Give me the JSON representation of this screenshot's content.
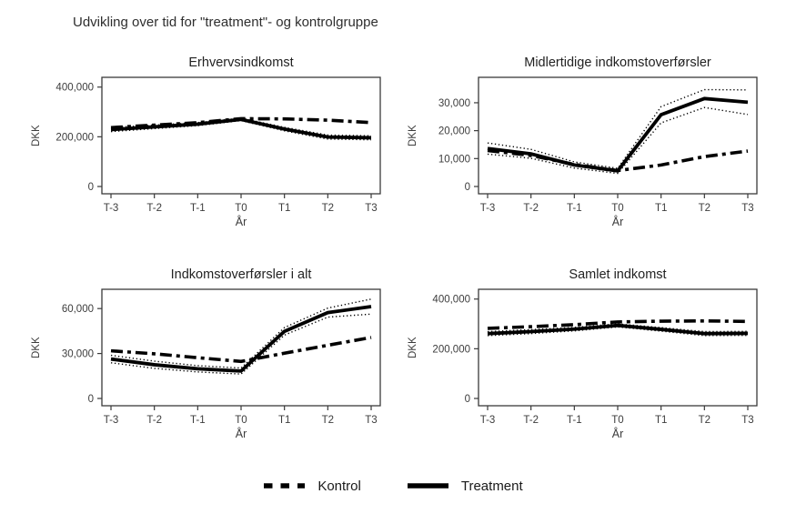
{
  "figure": {
    "title": "Udvikling over tid for \"treatment\"- og kontrolgruppe",
    "legend": [
      {
        "label": "Kontrol",
        "style": "dashed"
      },
      {
        "label": "Treatment",
        "style": "solid"
      }
    ],
    "colors": {
      "line": "#000000",
      "axis": "#3a3a3a",
      "text": "#3c3c3c"
    }
  },
  "chart_data": [
    {
      "type": "line",
      "title": "Erhvervsindkomst",
      "xlabel": "År",
      "ylabel": "DKK",
      "x_ticklabels": [
        "T-3",
        "T-2",
        "T-1",
        "T0",
        "T1",
        "T2",
        "T3"
      ],
      "ylim": [
        0,
        410000
      ],
      "yticks": [
        0,
        200000,
        400000
      ],
      "ytick_labels": [
        "0",
        "200,000",
        "400,000"
      ],
      "grid": false,
      "series": [
        {
          "key": "treatment-ci-upper",
          "style": "dotted",
          "values": [
            237000,
            247000,
            257000,
            275000,
            238000,
            207000,
            204000
          ]
        },
        {
          "key": "treatment-ci-lower",
          "style": "dotted",
          "values": [
            221000,
            233000,
            245000,
            265000,
            224000,
            191000,
            188000
          ]
        },
        {
          "key": "treatment",
          "name": "Treatment",
          "style": "solid",
          "values": [
            229000,
            240000,
            251000,
            270000,
            231000,
            199000,
            196000
          ]
        },
        {
          "key": "kontrol",
          "name": "Kontrol",
          "style": "dashed",
          "values": [
            237000,
            247000,
            257000,
            273000,
            272000,
            267000,
            257000
          ]
        }
      ]
    },
    {
      "type": "line",
      "title": "Midlertidige indkomstoverførsler",
      "xlabel": "År",
      "ylabel": "DKK",
      "x_ticklabels": [
        "T-3",
        "T-2",
        "T-1",
        "T0",
        "T1",
        "T2",
        "T3"
      ],
      "ylim": [
        0,
        36500
      ],
      "yticks": [
        0,
        10000,
        20000,
        30000
      ],
      "ytick_labels": [
        "0",
        "10,000",
        "20,000",
        "30,000"
      ],
      "grid": false,
      "series": [
        {
          "key": "treatment-ci-upper",
          "style": "dotted",
          "values": [
            15600,
            13300,
            8800,
            6500,
            28600,
            34700,
            34600
          ]
        },
        {
          "key": "treatment-ci-lower",
          "style": "dotted",
          "values": [
            11600,
            10100,
            6600,
            4700,
            22800,
            28300,
            25800
          ]
        },
        {
          "key": "treatment",
          "name": "Treatment",
          "style": "solid",
          "values": [
            13600,
            11700,
            7700,
            5600,
            25700,
            31500,
            30200
          ]
        },
        {
          "key": "kontrol",
          "name": "Kontrol",
          "style": "dashed",
          "values": [
            12900,
            11100,
            7900,
            5700,
            7700,
            10700,
            12700
          ]
        }
      ]
    },
    {
      "type": "line",
      "title": "Indkomstoverførsler i alt",
      "xlabel": "År",
      "ylabel": "DKK",
      "x_ticklabels": [
        "T-3",
        "T-2",
        "T-1",
        "T0",
        "T1",
        "T2",
        "T3"
      ],
      "ylim": [
        0,
        68000
      ],
      "yticks": [
        0,
        30000,
        60000
      ],
      "ytick_labels": [
        "0",
        "30,000",
        "60,000"
      ],
      "grid": false,
      "series": [
        {
          "key": "treatment-ci-upper",
          "style": "dotted",
          "values": [
            28800,
            24900,
            21900,
            20300,
            47300,
            60300,
            66300
          ]
        },
        {
          "key": "treatment-ci-lower",
          "style": "dotted",
          "values": [
            23800,
            20100,
            17700,
            16300,
            42300,
            54300,
            56300
          ]
        },
        {
          "key": "treatment",
          "name": "Treatment",
          "style": "solid",
          "values": [
            26300,
            22500,
            19800,
            18300,
            44800,
            57300,
            61300
          ]
        },
        {
          "key": "kontrol",
          "name": "Kontrol",
          "style": "dashed",
          "values": [
            31800,
            29800,
            27200,
            24700,
            30200,
            35500,
            40700
          ]
        }
      ]
    },
    {
      "type": "line",
      "title": "Samlet indkomst",
      "xlabel": "År",
      "ylabel": "DKK",
      "x_ticklabels": [
        "T-3",
        "T-2",
        "T-1",
        "T0",
        "T1",
        "T2",
        "T3"
      ],
      "ylim": [
        0,
        410000
      ],
      "yticks": [
        0,
        200000,
        400000
      ],
      "ytick_labels": [
        "0",
        "200,000",
        "400,000"
      ],
      "grid": false,
      "series": [
        {
          "key": "treatment-ci-upper",
          "style": "dotted",
          "values": [
            269000,
            277000,
            286000,
            300000,
            285000,
            269000,
            270000
          ]
        },
        {
          "key": "treatment-ci-lower",
          "style": "dotted",
          "values": [
            253000,
            261000,
            272000,
            288000,
            271000,
            253000,
            254000
          ]
        },
        {
          "key": "treatment",
          "name": "Treatment",
          "style": "solid",
          "values": [
            261000,
            269000,
            279000,
            294000,
            278000,
            261000,
            262000
          ]
        },
        {
          "key": "kontrol",
          "name": "Kontrol",
          "style": "dashed",
          "values": [
            282000,
            289000,
            297000,
            308000,
            311000,
            312000,
            310000
          ]
        }
      ]
    }
  ]
}
